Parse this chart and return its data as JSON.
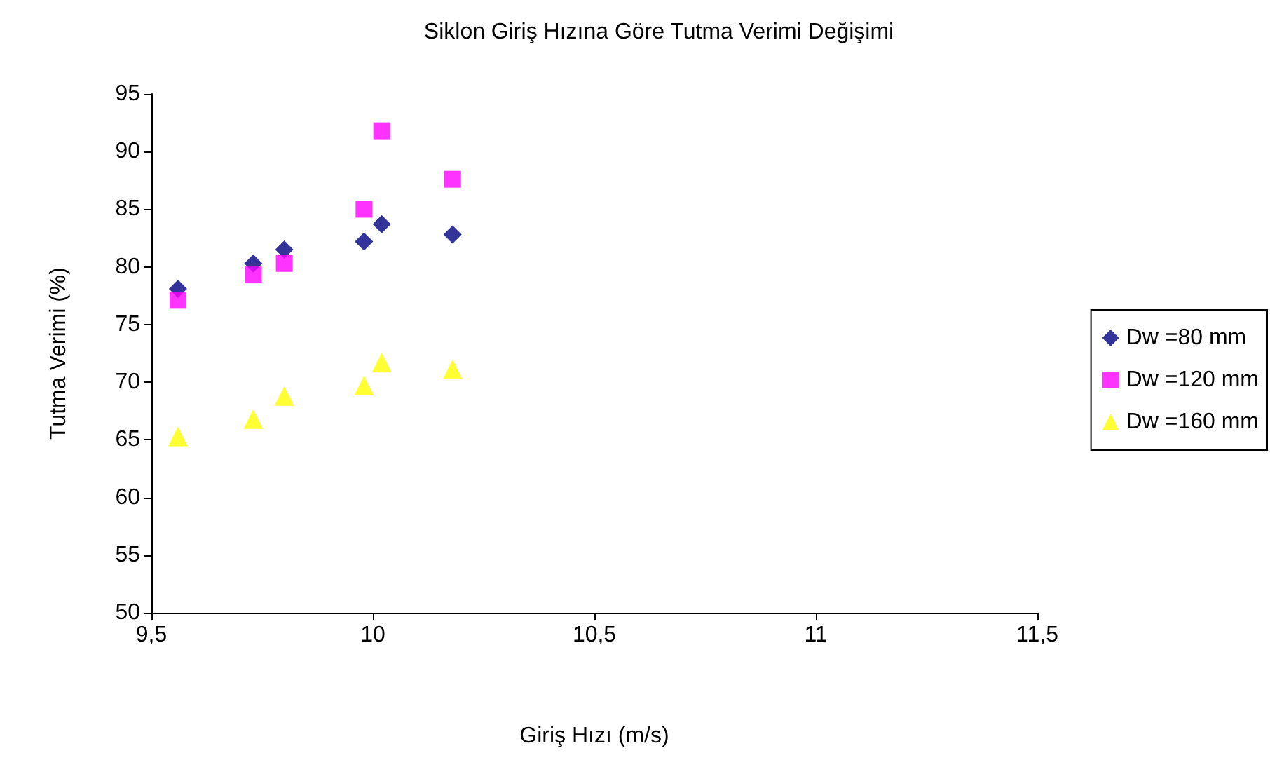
{
  "chart_data": {
    "type": "scatter",
    "title": "Siklon Giriş Hızına Göre Tutma Verimi Değişimi",
    "xlabel": "Giriş Hızı (m/s)",
    "ylabel": "Tutma Verimi (%)",
    "x": [
      9.56,
      9.73,
      9.8,
      9.98,
      10.02,
      10.18
    ],
    "series": [
      {
        "name": "Dw =80 mm",
        "color": "#000080",
        "marker": "diamond",
        "values": [
          78.1,
          80.3,
          81.5,
          82.2,
          83.7,
          82.8
        ]
      },
      {
        "name": "Dw =120 mm",
        "color": "#ff00ff",
        "marker": "square",
        "values": [
          77.1,
          79.3,
          80.3,
          85.0,
          91.8,
          87.6
        ]
      },
      {
        "name": "Dw =160 mm",
        "color": "#ffff00",
        "marker": "triangle",
        "values": [
          65.3,
          66.8,
          68.8,
          69.7,
          71.7,
          71.1
        ]
      }
    ],
    "xlim": [
      9.5,
      11.5
    ],
    "xticks": [
      {
        "value": 9.5,
        "label": "9,5"
      },
      10,
      {
        "value": 10.5,
        "label": "10,5"
      },
      11,
      {
        "value": 11.5,
        "label": "11,5"
      }
    ],
    "ylim": [
      50,
      95
    ],
    "yticks": [
      50,
      55,
      60,
      65,
      70,
      75,
      80,
      85,
      90,
      95
    ],
    "grid": false,
    "legend": "right"
  }
}
